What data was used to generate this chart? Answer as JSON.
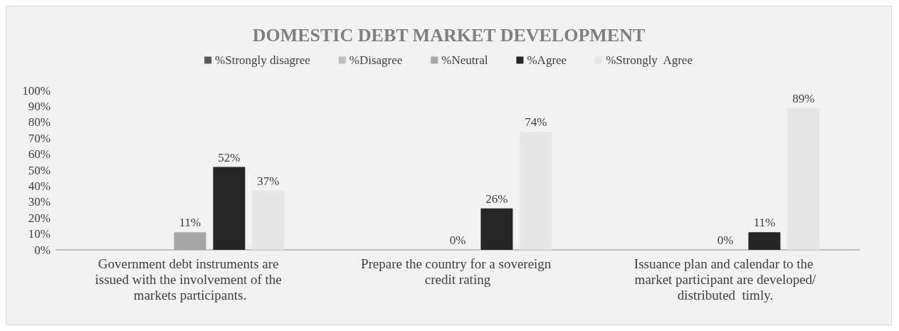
{
  "chart_data": {
    "type": "bar",
    "title": "DOMESTIC DEBT MARKET DEVELOPMENT",
    "categories": [
      "Government debt instruments are issued with the involvement of the markets participants.",
      "Prepare the country for a sovereign credit rating",
      "Issuance plan and calendar to the market participant are developed/distributed  timly."
    ],
    "series": [
      {
        "name": "%Strongly disagree",
        "color": "#595959",
        "values": [
          null,
          null,
          null
        ]
      },
      {
        "name": "%Disagree",
        "color": "#bfbfbf",
        "values": [
          null,
          null,
          null
        ]
      },
      {
        "name": "%Neutral",
        "color": "#a6a6a6",
        "values": [
          11,
          0,
          0
        ],
        "value_labels": [
          "11%",
          "0%",
          "0%"
        ]
      },
      {
        "name": "%Agree",
        "color": "#262626",
        "values": [
          52,
          26,
          11
        ],
        "value_labels": [
          "52%",
          "26%",
          "11%"
        ]
      },
      {
        "name": "%Strongly  Agree",
        "color": "#e6e6e6",
        "values": [
          37,
          74,
          89
        ],
        "value_labels": [
          "37%",
          "74%",
          "89%"
        ]
      }
    ],
    "ylim": [
      0,
      100
    ],
    "yticks": [
      {
        "value": 0,
        "label": "0%"
      },
      {
        "value": 10,
        "label": "10%"
      },
      {
        "value": 20,
        "label": "20%"
      },
      {
        "value": 30,
        "label": "30%"
      },
      {
        "value": 40,
        "label": "40%"
      },
      {
        "value": 50,
        "label": "50%"
      },
      {
        "value": 60,
        "label": "60%"
      },
      {
        "value": 70,
        "label": "70%"
      },
      {
        "value": 80,
        "label": "80%"
      },
      {
        "value": 90,
        "label": "90%"
      },
      {
        "value": 100,
        "label": "100%"
      }
    ],
    "grid": false,
    "legend": "top"
  }
}
